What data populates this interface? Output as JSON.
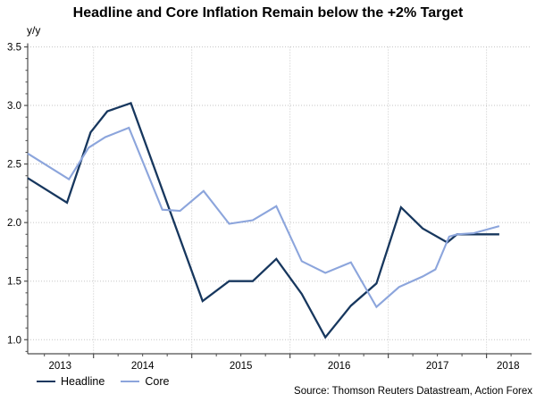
{
  "title": "Headline and Core Inflation Remain below the +2% Target",
  "y_unit_label": "y/y",
  "source": "Source: Thomson Reuters Datastream, Action Forex",
  "colors": {
    "headline": "#17375e",
    "core": "#8ca5dc",
    "gridline": "#c6c6c6",
    "axis": "#4d4d4d",
    "text": "#000000"
  },
  "legend": [
    {
      "label": "Headline",
      "color": "#17375e"
    },
    {
      "label": "Core",
      "color": "#8ca5dc"
    }
  ],
  "chart_data": {
    "type": "line",
    "title": "Headline and Core Inflation Remain below the +2% Target",
    "ylabel": "y/y",
    "grid": "dotted",
    "legend_position": "bottom-left",
    "x_axis": {
      "range": [
        2013.33,
        2018.44
      ],
      "gridlines": [
        2014,
        2015,
        2016,
        2017,
        2018
      ],
      "labels": [
        "2013",
        "2014",
        "2015",
        "2016",
        "2017",
        "2018"
      ],
      "label_positions": [
        2013.66,
        2014.5,
        2015.5,
        2016.5,
        2017.5,
        2018.22
      ],
      "minor_tick_step": 0.25
    },
    "y_axis": {
      "ticks": [
        1.0,
        1.5,
        2.0,
        2.5,
        3.0,
        3.5
      ],
      "range_at_plot": [
        0.88,
        3.5
      ],
      "minor_tick_step": 0.1
    },
    "series": [
      {
        "name": "Headline",
        "color": "#17375e",
        "width": 2.3,
        "points": [
          [
            2013.33,
            2.38
          ],
          [
            2013.73,
            2.17
          ],
          [
            2013.97,
            2.77
          ],
          [
            2014.14,
            2.95
          ],
          [
            2014.38,
            3.02
          ],
          [
            2015.11,
            1.33
          ],
          [
            2015.38,
            1.5
          ],
          [
            2015.62,
            1.5
          ],
          [
            2015.86,
            1.69
          ],
          [
            2016.12,
            1.39
          ],
          [
            2016.36,
            1.02
          ],
          [
            2016.62,
            1.29
          ],
          [
            2016.88,
            1.48
          ],
          [
            2017.13,
            2.13
          ],
          [
            2017.35,
            1.95
          ],
          [
            2017.6,
            1.83
          ],
          [
            2017.7,
            1.9
          ],
          [
            2018.13,
            1.9
          ]
        ]
      },
      {
        "name": "Core",
        "color": "#8ca5dc",
        "width": 2.1,
        "points": [
          [
            2013.33,
            2.59
          ],
          [
            2013.75,
            2.37
          ],
          [
            2013.95,
            2.64
          ],
          [
            2014.12,
            2.73
          ],
          [
            2014.36,
            2.81
          ],
          [
            2014.7,
            2.11
          ],
          [
            2014.88,
            2.1
          ],
          [
            2015.12,
            2.27
          ],
          [
            2015.38,
            1.99
          ],
          [
            2015.62,
            2.02
          ],
          [
            2015.86,
            2.14
          ],
          [
            2016.12,
            1.67
          ],
          [
            2016.36,
            1.57
          ],
          [
            2016.62,
            1.66
          ],
          [
            2016.88,
            1.28
          ],
          [
            2017.11,
            1.45
          ],
          [
            2017.35,
            1.54
          ],
          [
            2017.48,
            1.6
          ],
          [
            2017.62,
            1.88
          ],
          [
            2017.7,
            1.9
          ],
          [
            2017.87,
            1.91
          ],
          [
            2018.13,
            1.97
          ]
        ]
      }
    ]
  }
}
